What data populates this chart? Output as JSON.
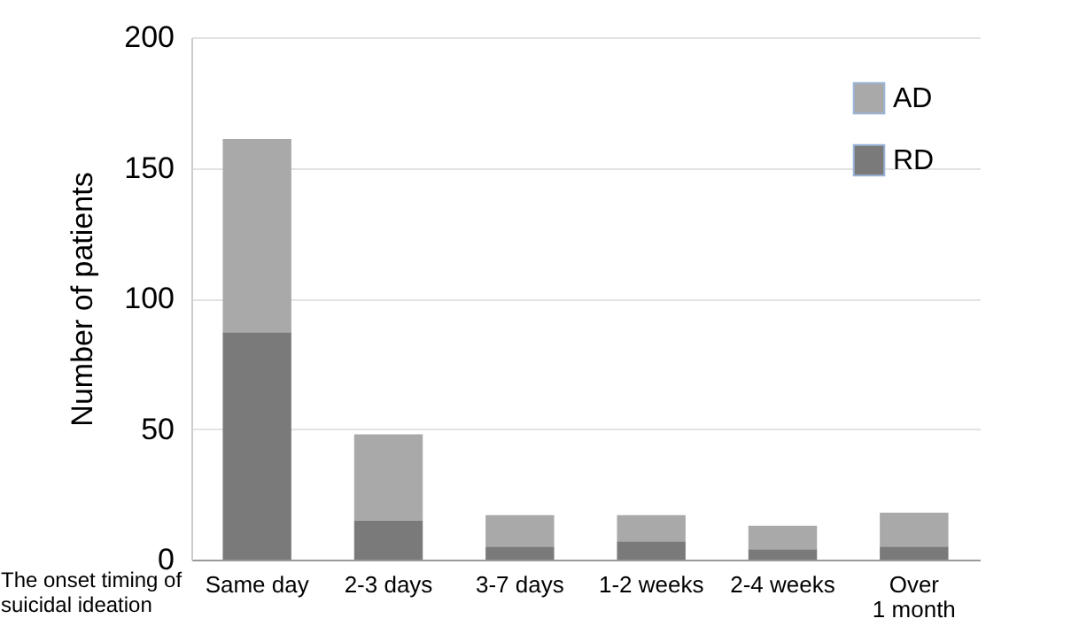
{
  "chart_data": {
    "type": "bar",
    "stacked": true,
    "xlabel": "The onset timing of suicidal ideation",
    "ylabel": "Number of patients",
    "categories": [
      "Same day",
      "2-3 days",
      "3-7 days",
      "1-2 weeks",
      "2-4 weeks",
      "Over 1 month"
    ],
    "series": [
      {
        "name": "RD",
        "color": "#7a7a7a",
        "values": [
          87,
          15,
          5,
          7,
          4,
          5
        ]
      },
      {
        "name": "AD",
        "color": "#a9a9a9",
        "values": [
          74,
          33,
          12,
          10,
          9,
          13
        ]
      }
    ],
    "ylim": [
      0,
      200
    ],
    "yticks": [
      0,
      50,
      100,
      150,
      200
    ],
    "grid": "y",
    "legend": "top right"
  }
}
